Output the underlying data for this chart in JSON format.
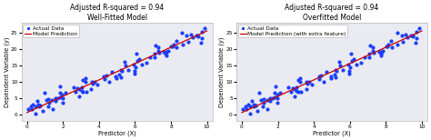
{
  "seed": 42,
  "n_points": 100,
  "x_min": 0,
  "x_max": 10,
  "noise_std": 1.5,
  "slope": 2.5,
  "intercept": 0.5,
  "title_left": "Adjusted R-squared = 0.94\nWell-Fitted Model",
  "title_right": "Adjusted R-squared = 0.94\nOverfitted Model",
  "xlabel": "Predictor (X)",
  "ylabel": "Dependent Variable (y)",
  "legend_label_data": "Actual Data",
  "legend_label_line_left": "Model Prediction",
  "legend_label_line_right": "Model Prediction (with extra feature)",
  "dot_color": "#1a3fff",
  "line_color": "#cc0000",
  "bg_color": "#eaeaf2",
  "fig_bg_color": "#ffffff",
  "title_fontsize": 5.5,
  "axis_label_fontsize": 4.8,
  "tick_fontsize": 4.2,
  "legend_fontsize": 4.2,
  "ylim": [
    -2,
    28
  ],
  "xlim": [
    -0.3,
    10.3
  ],
  "dot_size": 4,
  "line_width": 0.9
}
